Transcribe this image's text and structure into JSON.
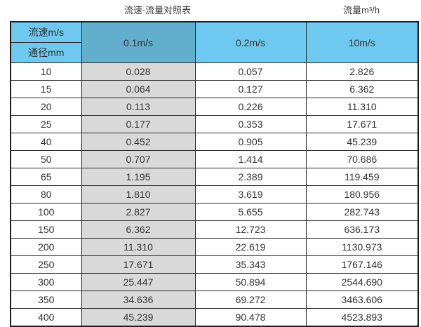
{
  "titles": {
    "left": "流速-流量对照表",
    "right": "流量m³/h"
  },
  "colors": {
    "header_light_blue": "#6fc8ef",
    "header_dark_blue": "#62aecd",
    "gray_column": "#d9d9d9",
    "border": "#2b2b2b",
    "text": "#333333"
  },
  "chart_data": {
    "type": "table",
    "title": "流速-流量对照表",
    "unit_label": "流量m³/h",
    "corner_headers": {
      "top": "流速m/s",
      "bottom": "通径mm"
    },
    "velocity_columns": [
      "0.1m/s",
      "0.2m/s",
      "10m/s"
    ],
    "columns_meaning": [
      "通径mm",
      "0.1m/s",
      "0.2m/s",
      "10m/s"
    ],
    "rows": [
      [
        "10",
        "0.028",
        "0.057",
        "2.826"
      ],
      [
        "15",
        "0.064",
        "0.127",
        "6.362"
      ],
      [
        "20",
        "0.113",
        "0.226",
        "11.310"
      ],
      [
        "25",
        "0.177",
        "0.353",
        "17.671"
      ],
      [
        "40",
        "0.452",
        "0.905",
        "45.239"
      ],
      [
        "50",
        "0.707",
        "1.414",
        "70.686"
      ],
      [
        "65",
        "1.195",
        "2.389",
        "119.459"
      ],
      [
        "80",
        "1.810",
        "3.619",
        "180.956"
      ],
      [
        "100",
        "2.827",
        "5.655",
        "282.743"
      ],
      [
        "150",
        "6.362",
        "12.723",
        "636.173"
      ],
      [
        "200",
        "11.310",
        "22.619",
        "1130.973"
      ],
      [
        "250",
        "17.671",
        "35.343",
        "1767.146"
      ],
      [
        "300",
        "25.447",
        "50.894",
        "2544.690"
      ],
      [
        "350",
        "34.636",
        "69.272",
        "3463.606"
      ],
      [
        "400",
        "45.239",
        "90.478",
        "4523.893"
      ]
    ]
  }
}
